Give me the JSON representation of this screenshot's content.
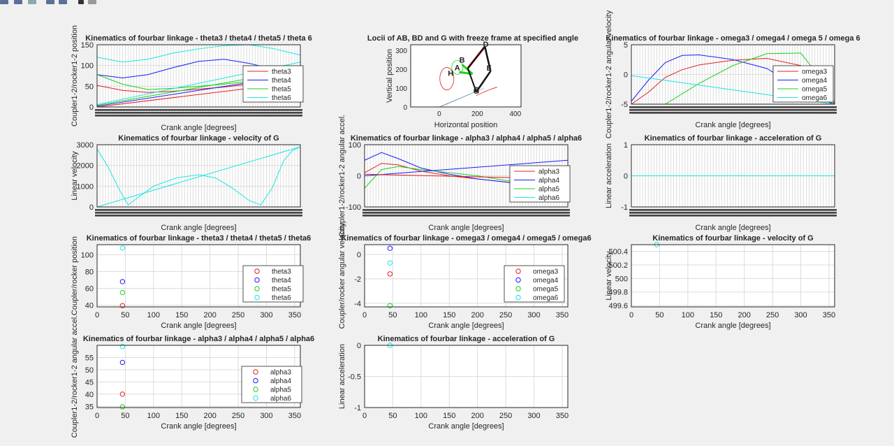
{
  "toolbar": {
    "icons": [
      "new-figure-icon",
      "open-icon",
      "save-icon",
      "print-icon",
      "insert-icon",
      "pointer-icon",
      "edit-plot-icon"
    ]
  },
  "xlabel_common": "Crank angle [degrees]",
  "legend_labels": {
    "theta": [
      "theta3",
      "theta4",
      "theta5",
      "theta6"
    ],
    "omega": [
      "omega3",
      "omega4",
      "omega5",
      "omega6"
    ],
    "alpha": [
      "alpha3",
      "alpha4",
      "alpha5",
      "alpha6"
    ]
  },
  "colors": {
    "red": "#e02020",
    "blue": "#1a1aff",
    "green": "#19d219",
    "cyan": "#19e6e6",
    "grid": "#dcdcdc",
    "axes_bg": "#ffffff",
    "fig_bg": "#f0f0f0"
  },
  "chart_data": [
    {
      "id": "p1",
      "type": "line",
      "title": "Kinematics of fourbar linkage - theta3 / theta4 / theta5 / theta 6",
      "xlabel": "Crank angle [degrees]",
      "ylabel": "Coupler1-2/rocker1-2 position",
      "xlim": [
        0,
        360
      ],
      "ylim": [
        0,
        150
      ],
      "yticks": [
        "0",
        "50",
        "100",
        "150"
      ],
      "legend": [
        "theta3",
        "theta4",
        "theta5",
        "theta6"
      ],
      "series": [
        {
          "name": "theta3",
          "x": [
            0,
            45,
            90,
            135,
            180,
            225,
            270,
            315,
            360
          ],
          "y": [
            52,
            40,
            35,
            38,
            43,
            48,
            55,
            60,
            56
          ]
        },
        {
          "name": "theta4",
          "x": [
            0,
            45,
            90,
            135,
            180,
            225,
            270,
            315,
            360
          ],
          "y": [
            78,
            70,
            78,
            95,
            110,
            115,
            105,
            90,
            80
          ]
        },
        {
          "name": "theta5",
          "x": [
            0,
            45,
            90,
            135,
            180,
            225,
            270,
            315,
            360
          ],
          "y": [
            78,
            55,
            42,
            45,
            50,
            55,
            62,
            70,
            75
          ]
        },
        {
          "name": "theta6",
          "x": [
            0,
            45,
            90,
            135,
            180,
            225,
            270,
            315,
            360
          ],
          "y": [
            120,
            108,
            115,
            130,
            140,
            148,
            150,
            140,
            125
          ]
        },
        {
          "name": "theta3-b",
          "x": [
            0,
            360
          ],
          "y": [
            0,
            60
          ]
        },
        {
          "name": "theta4-b",
          "x": [
            0,
            360
          ],
          "y": [
            2,
            78
          ]
        },
        {
          "name": "theta5-b",
          "x": [
            0,
            360
          ],
          "y": [
            4,
            90
          ]
        },
        {
          "name": "theta6-b",
          "x": [
            0,
            360
          ],
          "y": [
            6,
            108
          ]
        }
      ]
    },
    {
      "id": "p2",
      "type": "line",
      "title": "Locii of AB, BD and G with freeze frame at specified angle",
      "xlabel": "Horizontal position",
      "ylabel": "Vertical position",
      "xlim": [
        -150,
        430
      ],
      "ylim": [
        0,
        330
      ],
      "xticks": [
        "0",
        "200",
        "400"
      ],
      "yticks": [
        "0",
        "100",
        "200",
        "300"
      ],
      "point_labels": [
        "A",
        "B",
        "C",
        "D",
        "E",
        "G",
        "H"
      ]
    },
    {
      "id": "p3",
      "type": "line",
      "title": "Kinematics of fourbar linkage - omega3 / omega4 / omega 5 / omega 6",
      "xlabel": "Crank angle [degrees]",
      "ylabel": "Coupler1-2/rocker1-2 angular velocity",
      "xlim": [
        0,
        360
      ],
      "ylim": [
        -5,
        5
      ],
      "yticks": [
        "-5",
        "0",
        "5"
      ],
      "legend": [
        "omega3",
        "omega4",
        "omega5",
        "omega6"
      ],
      "series": [
        {
          "name": "omega3",
          "x": [
            0,
            30,
            60,
            90,
            120,
            180,
            240,
            300,
            330,
            360
          ],
          "y": [
            -5,
            -3,
            -0.5,
            0.8,
            1.6,
            2.4,
            2.7,
            1.5,
            -1,
            -5
          ]
        },
        {
          "name": "omega4",
          "x": [
            0,
            30,
            60,
            90,
            120,
            180,
            240,
            300,
            330,
            360
          ],
          "y": [
            -4.5,
            -1,
            2,
            3.2,
            3.3,
            2.5,
            1,
            -2.5,
            -4,
            -5
          ]
        },
        {
          "name": "omega5",
          "x": [
            0,
            60,
            120,
            180,
            240,
            300,
            330,
            360
          ],
          "y": [
            -5,
            -5,
            -1.5,
            1.5,
            3.5,
            3.6,
            0,
            -4.8
          ]
        },
        {
          "name": "omega6",
          "x": [
            0,
            360
          ],
          "y": [
            -0.2,
            -5
          ]
        }
      ]
    },
    {
      "id": "p4",
      "type": "line",
      "title": "Kinematics of fourbar linkage - velocity of G",
      "xlabel": "Crank angle [degrees]",
      "ylabel": "Linear velocity",
      "xlim": [
        0,
        360
      ],
      "ylim": [
        0,
        3000
      ],
      "yticks": [
        "0",
        "1000",
        "2000",
        "3000"
      ],
      "series": [
        {
          "name": "vG",
          "x": [
            0,
            20,
            40,
            55,
            70,
            100,
            140,
            180,
            210,
            240,
            270,
            290,
            310,
            330,
            345,
            360
          ],
          "y": [
            2800,
            1900,
            800,
            100,
            400,
            1000,
            1400,
            1550,
            1400,
            900,
            300,
            100,
            900,
            2200,
            2700,
            2900
          ]
        },
        {
          "name": "vG-b",
          "x": [
            0,
            360
          ],
          "y": [
            0,
            2900
          ]
        }
      ]
    },
    {
      "id": "p5",
      "type": "line",
      "title": "Kinematics of fourbar linkage - alpha3 / alpha4 / alpha5 / alpha6",
      "xlabel": "Crank angle [degrees]",
      "ylabel": "Coupler1-2/rocker1-2 angular accel.",
      "xlim": [
        0,
        360
      ],
      "ylim": [
        -100,
        100
      ],
      "yticks": [
        "-100",
        "0",
        "100"
      ],
      "legend": [
        "alpha3",
        "alpha4",
        "alpha5",
        "alpha6"
      ],
      "series": [
        {
          "name": "alpha3",
          "x": [
            0,
            30,
            60,
            100,
            150,
            200,
            250,
            300,
            360
          ],
          "y": [
            10,
            40,
            35,
            15,
            0,
            -10,
            -20,
            -30,
            -20
          ]
        },
        {
          "name": "alpha4",
          "x": [
            0,
            30,
            60,
            100,
            150,
            200,
            250,
            300,
            360
          ],
          "y": [
            50,
            75,
            55,
            25,
            5,
            -10,
            -20,
            -35,
            -10
          ]
        },
        {
          "name": "alpha5",
          "x": [
            0,
            30,
            60,
            100,
            150,
            200,
            250,
            300,
            360
          ],
          "y": [
            -40,
            20,
            30,
            20,
            10,
            0,
            -15,
            -25,
            -40
          ]
        },
        {
          "name": "alpha6",
          "x": [
            0,
            360
          ],
          "y": [
            0,
            50
          ]
        },
        {
          "name": "alpha6-b",
          "x": [
            0,
            360
          ],
          "y": [
            5,
            -10
          ]
        }
      ]
    },
    {
      "id": "p6",
      "type": "line",
      "title": "Kinematics of fourbar linkage - acceleration of G",
      "xlabel": "Crank angle [degrees]",
      "ylabel": "Linear acceleration",
      "xlim": [
        0,
        360
      ],
      "ylim": [
        -1,
        1
      ],
      "yticks": [
        "-1",
        "0",
        "1"
      ],
      "series": [
        {
          "name": "aG",
          "x": [
            0,
            360
          ],
          "y": [
            0,
            0
          ]
        }
      ]
    },
    {
      "id": "p7",
      "type": "scatter",
      "title": "Kinematics of fourbar linkage - theta3 / theta4 / theta5 / theta6",
      "xlabel": "Crank angle [degrees]",
      "ylabel": "Coupler/rocker position",
      "xlim": [
        0,
        360
      ],
      "ylim": [
        38,
        112
      ],
      "xticks": [
        "0",
        "50",
        "100",
        "150",
        "200",
        "250",
        "300",
        "350"
      ],
      "yticks": [
        "40",
        "60",
        "80",
        "100"
      ],
      "legend": [
        "theta3",
        "theta4",
        "theta5",
        "theta6"
      ],
      "points": [
        {
          "name": "theta3",
          "x": 45,
          "y": 39.5
        },
        {
          "name": "theta4",
          "x": 45,
          "y": 68
        },
        {
          "name": "theta5",
          "x": 45,
          "y": 55
        },
        {
          "name": "theta6",
          "x": 45,
          "y": 108
        }
      ]
    },
    {
      "id": "p8",
      "type": "scatter",
      "title": "Kinematics of fourbar linkage - omega3 / omega4 / omega5 / omega6",
      "xlabel": "Crank angle [degrees]",
      "ylabel": "Coupler/rocker angular velocity",
      "xlim": [
        0,
        360
      ],
      "ylim": [
        -4.3,
        0.8
      ],
      "xticks": [
        "0",
        "50",
        "100",
        "150",
        "200",
        "250",
        "300",
        "350"
      ],
      "yticks": [
        "-4",
        "-2",
        "0"
      ],
      "legend": [
        "omega3",
        "omega4",
        "omega5",
        "omega6"
      ],
      "points": [
        {
          "name": "omega3",
          "x": 45,
          "y": -1.6
        },
        {
          "name": "omega4",
          "x": 45,
          "y": 0.5
        },
        {
          "name": "omega5",
          "x": 45,
          "y": -4.2
        },
        {
          "name": "omega6",
          "x": 45,
          "y": -0.7
        }
      ]
    },
    {
      "id": "p9",
      "type": "scatter",
      "title": "Kinematics of fourbar linkage - velocity of G",
      "xlabel": "Crank angle [degrees]",
      "ylabel": "Linear velocity",
      "xlim": [
        0,
        360
      ],
      "ylim": [
        499.58,
        500.5
      ],
      "xticks": [
        "0",
        "50",
        "100",
        "150",
        "200",
        "250",
        "300",
        "350"
      ],
      "yticks": [
        "499.6",
        "499.8",
        "500",
        "500.2",
        "500.4"
      ],
      "points": [
        {
          "name": "vG",
          "x": 45,
          "y": 500.5
        }
      ]
    },
    {
      "id": "p10",
      "type": "scatter",
      "title": "Kinematics of fourbar linkage - alpha3 / alpha4 / alpha5 / alpha6",
      "xlabel": "Crank angle [degrees]",
      "ylabel": "Coupler1-2/rocker1-2 angular accel.",
      "xlim": [
        0,
        360
      ],
      "ylim": [
        34.5,
        60
      ],
      "xticks": [
        "0",
        "50",
        "100",
        "150",
        "200",
        "250",
        "300",
        "350"
      ],
      "yticks": [
        "35",
        "40",
        "45",
        "50",
        "55"
      ],
      "legend": [
        "alpha3",
        "alpha4",
        "alpha5",
        "alpha6"
      ],
      "points": [
        {
          "name": "alpha3",
          "x": 45,
          "y": 40
        },
        {
          "name": "alpha4",
          "x": 45,
          "y": 53
        },
        {
          "name": "alpha5",
          "x": 45,
          "y": 34.8
        },
        {
          "name": "alpha6",
          "x": 45,
          "y": 59.5
        }
      ]
    },
    {
      "id": "p11",
      "type": "scatter",
      "title": "Kinematics of fourbar linkage - acceleration of G",
      "xlabel": "Crank angle [degrees]",
      "ylabel": "Linear acceleration",
      "xlim": [
        0,
        360
      ],
      "ylim": [
        -1,
        0
      ],
      "xticks": [
        "0",
        "50",
        "100",
        "150",
        "200",
        "250",
        "300",
        "350"
      ],
      "yticks": [
        "-1",
        "-0.5",
        "0"
      ],
      "points": [
        {
          "name": "aG",
          "x": 45,
          "y": 0
        }
      ]
    }
  ]
}
